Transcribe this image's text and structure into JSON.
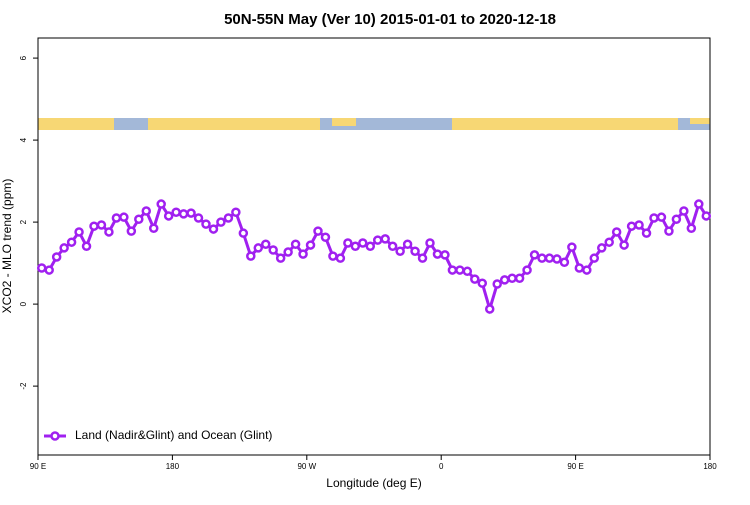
{
  "chart_data": {
    "type": "line",
    "title": "50N-55N May (Ver 10)   2015-01-01 to 2020-12-18",
    "x_label": "Longitude (deg E)",
    "y_label": "XCO2 - MLO trend (ppm)",
    "xlim": [
      90,
      540
    ],
    "xticks": [
      {
        "value": 90,
        "label": "90 E"
      },
      180,
      {
        "value": 270,
        "label": "90 W"
      },
      {
        "value": 360,
        "label": "0"
      },
      {
        "value": 450,
        "label": "90 E"
      },
      {
        "value": 540,
        "label": "180"
      }
    ],
    "ylim": [
      -3.68,
      6.49
    ],
    "yticks": [
      -2,
      0,
      2,
      4,
      6
    ],
    "legend": "bottomleft",
    "x": [
      92.5,
      97.5,
      102.5,
      107.5,
      112.5,
      117.5,
      122.5,
      127.5,
      132.5,
      137.5,
      142.5,
      147.5,
      152.5,
      157.5,
      162.5,
      167.5,
      172.5,
      177.5,
      182.5,
      187.5,
      192.5,
      197.5,
      202.5,
      207.5,
      212.5,
      217.5,
      222.5,
      227.5,
      232.5,
      237.5,
      242.5,
      247.5,
      252.5,
      257.5,
      262.5,
      267.5,
      272.5,
      277.5,
      282.5,
      287.5,
      292.5,
      297.5,
      302.5,
      307.5,
      312.5,
      317.5,
      322.5,
      327.5,
      332.5,
      337.5,
      342.5,
      347.5,
      352.5,
      357.5,
      362.5,
      367.5,
      372.5,
      377.5,
      382.5,
      387.5,
      392.5,
      397.5,
      402.5,
      407.5,
      412.5,
      417.5,
      422.5,
      427.5,
      432.5,
      437.5,
      442.5,
      447.5,
      452.5,
      457.5,
      462.5,
      467.5,
      472.5,
      477.5,
      482.5,
      487.5,
      492.5,
      497.5,
      502.5,
      507.5,
      512.5,
      517.5,
      522.5,
      527.5,
      532.5,
      537.5
    ],
    "series": [
      {
        "name": "Land (Nadir&Glint) and Ocean (Glint)",
        "color": "#a020f0",
        "values": [
          0.88,
          0.83,
          1.15,
          1.37,
          1.51,
          1.76,
          1.41,
          1.9,
          1.93,
          1.76,
          2.1,
          2.12,
          1.78,
          2.07,
          2.27,
          1.85,
          2.44,
          2.15,
          2.24,
          2.2,
          2.22,
          2.1,
          1.95,
          1.83,
          2.0,
          2.1,
          2.24,
          1.73,
          1.17,
          1.37,
          1.46,
          1.32,
          1.12,
          1.27,
          1.46,
          1.22,
          1.44,
          1.78,
          1.63,
          1.17,
          1.12,
          1.49,
          1.41,
          1.49,
          1.41,
          1.56,
          1.59,
          1.41,
          1.29,
          1.46,
          1.29,
          1.12,
          1.49,
          1.22,
          1.2,
          0.83,
          0.83,
          0.8,
          0.61,
          0.51,
          -0.12,
          0.49,
          0.59,
          0.63,
          0.63,
          0.83,
          1.2,
          1.12,
          1.12,
          1.1,
          1.02,
          1.39,
          0.88,
          0.83,
          1.12,
          1.37,
          1.51,
          1.76,
          1.44,
          1.9,
          1.93,
          1.73,
          2.1,
          2.12,
          1.78,
          2.07,
          2.27,
          1.85,
          2.44,
          2.15
        ]
      }
    ]
  }
}
